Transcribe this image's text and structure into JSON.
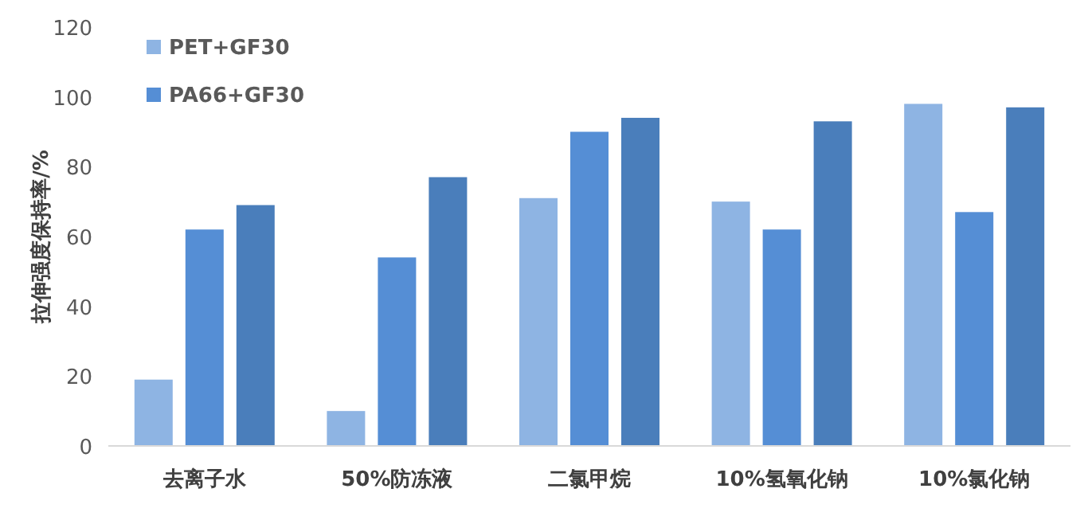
{
  "chart_data": {
    "type": "bar",
    "ylabel": "拉伸强度保持率/%",
    "categories": [
      "去离子水",
      "50%防冻液",
      "二氯甲烷",
      "10%氢氧化钠",
      "10%氯化钠"
    ],
    "series": [
      {
        "name": "PET+GF30",
        "color": "#8eb4e3",
        "values": [
          19,
          10,
          71,
          70,
          98
        ]
      },
      {
        "name": "PA66+GF30",
        "color": "#558ed5",
        "values": [
          62,
          54,
          90,
          62,
          67
        ]
      },
      {
        "color": "#4a7ebb",
        "values": [
          69,
          77,
          94,
          93,
          97
        ]
      }
    ],
    "ylim": [
      0,
      120
    ],
    "yticks": [
      0,
      20,
      40,
      60,
      80,
      100,
      120
    ],
    "legend": "top left"
  }
}
